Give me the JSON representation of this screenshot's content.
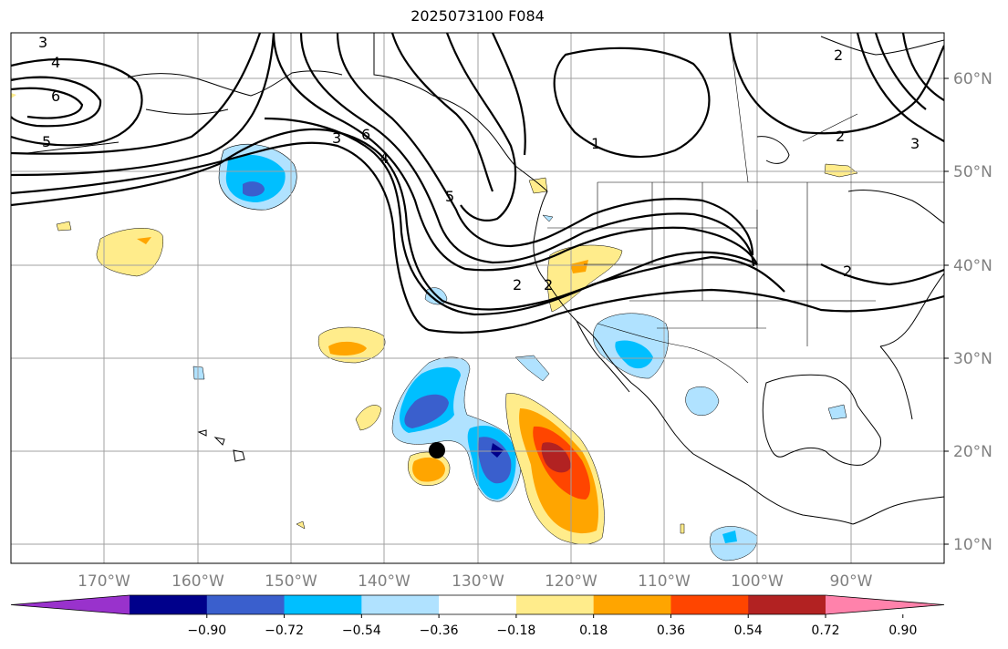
{
  "title": "2025073100 F084",
  "lat_labels": [
    "60°N",
    "50°N",
    "40°N",
    "30°N",
    "20°N",
    "10°N"
  ],
  "lon_labels": [
    "170°W",
    "160°W",
    "150°W",
    "140°W",
    "130°W",
    "120°W",
    "110°W",
    "100°W",
    "90°W"
  ],
  "colorbar": {
    "ticks": [
      "−0.90",
      "−0.72",
      "−0.54",
      "−0.36",
      "−0.18",
      "0.18",
      "0.36",
      "0.54",
      "0.72",
      "0.90"
    ],
    "colors": [
      "#9932cc",
      "#00008b",
      "#3a5fcd",
      "#00bfff",
      "#b0e2ff",
      "#ffffff",
      "#ffec8b",
      "#ffa500",
      "#ff4500",
      "#b22222",
      "#ff82ab"
    ]
  },
  "contour_labels": [
    "3",
    "4",
    "6",
    "5",
    "3",
    "6",
    "4",
    "5",
    "2",
    "2",
    "1",
    "2",
    "2",
    "3",
    "2"
  ],
  "marker": "center-dot"
}
